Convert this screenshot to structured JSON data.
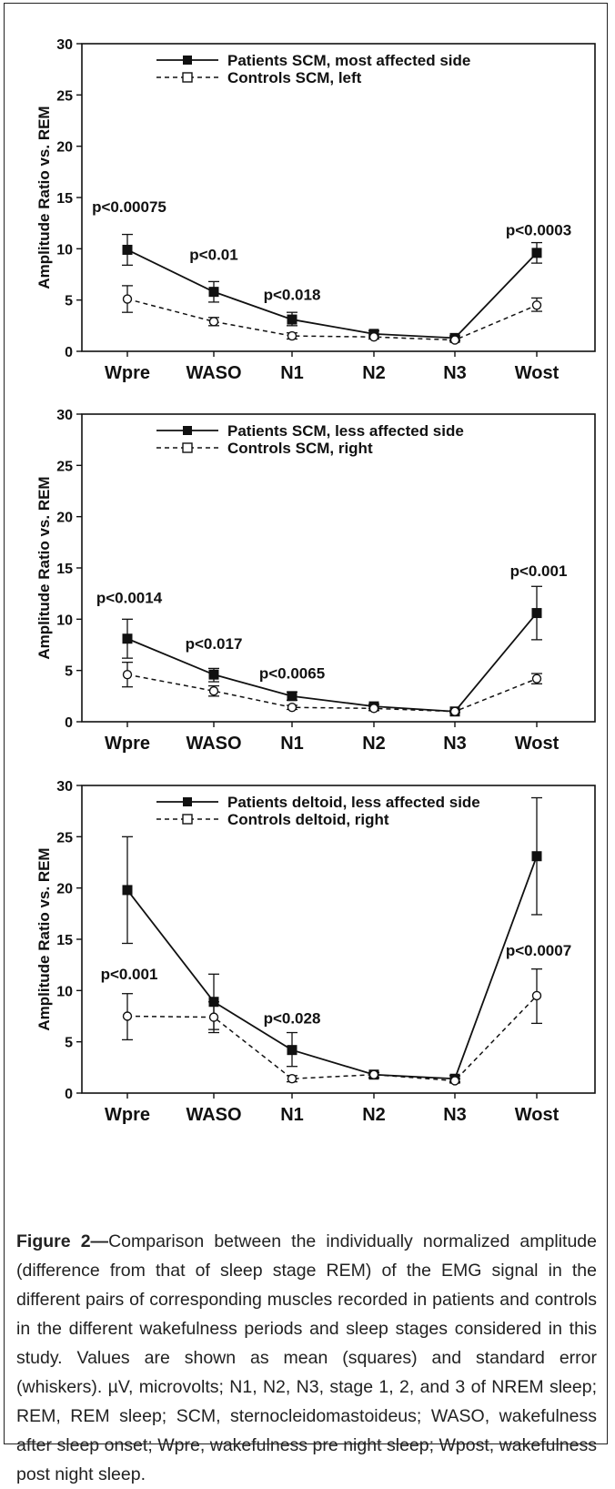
{
  "chart_data": [
    {
      "type": "line",
      "ylabel": "Amplitude Ratio vs. REM",
      "categories": [
        "Wpre",
        "WASO",
        "N1",
        "N2",
        "N3",
        "Wost"
      ],
      "ylim": [
        0,
        30
      ],
      "yticks": [
        0,
        5,
        10,
        15,
        20,
        25,
        30
      ],
      "legend_position": "top-center",
      "series": [
        {
          "name": "Patients SCM, most affected side",
          "style": "solid",
          "marker": "filled-square",
          "color": "#111111",
          "values": [
            9.9,
            5.8,
            3.1,
            1.7,
            1.3,
            9.6
          ],
          "err_low": [
            8.4,
            4.8,
            2.5,
            1.4,
            1.1,
            8.6
          ],
          "err_high": [
            11.4,
            6.8,
            3.8,
            2.0,
            1.5,
            10.6
          ]
        },
        {
          "name": "Controls SCM, left",
          "style": "dashed",
          "marker": "open-circle",
          "color": "#111111",
          "values": [
            5.1,
            2.9,
            1.5,
            1.4,
            1.1,
            4.5
          ],
          "err_low": [
            3.8,
            2.5,
            1.2,
            1.2,
            1.0,
            3.9
          ],
          "err_high": [
            6.4,
            3.3,
            1.8,
            1.6,
            1.3,
            5.2
          ]
        }
      ],
      "annotations": [
        {
          "text": "p<0.00075",
          "category": "Wpre",
          "y": 13.6
        },
        {
          "text": "p<0.01",
          "category": "WASO",
          "y": 8.9
        },
        {
          "text": "p<0.018",
          "category": "N1",
          "y": 5.0
        },
        {
          "text": "p<0.0003",
          "category": "Wost",
          "y": 11.3
        }
      ]
    },
    {
      "type": "line",
      "ylabel": "Amplitude Ratio vs. REM",
      "categories": [
        "Wpre",
        "WASO",
        "N1",
        "N2",
        "N3",
        "Wost"
      ],
      "ylim": [
        0,
        30
      ],
      "yticks": [
        0,
        5,
        10,
        15,
        20,
        25,
        30
      ],
      "legend_position": "top-center",
      "series": [
        {
          "name": "Patients SCM, less affected side",
          "style": "solid",
          "marker": "filled-square",
          "color": "#111111",
          "values": [
            8.1,
            4.6,
            2.5,
            1.5,
            1.0,
            10.6
          ],
          "err_low": [
            6.2,
            3.9,
            2.1,
            1.3,
            0.9,
            8.0
          ],
          "err_high": [
            10.0,
            5.2,
            2.9,
            1.7,
            1.1,
            13.2
          ]
        },
        {
          "name": "Controls SCM, right",
          "style": "dashed",
          "marker": "open-circle",
          "color": "#111111",
          "values": [
            4.6,
            3.0,
            1.4,
            1.3,
            1.0,
            4.2
          ],
          "err_low": [
            3.4,
            2.5,
            1.2,
            1.1,
            0.9,
            3.7
          ],
          "err_high": [
            5.8,
            3.5,
            1.6,
            1.5,
            1.1,
            4.7
          ]
        }
      ],
      "annotations": [
        {
          "text": "p<0.0014",
          "category": "Wpre",
          "y": 11.6
        },
        {
          "text": "p<0.017",
          "category": "WASO",
          "y": 7.1
        },
        {
          "text": "p<0.0065",
          "category": "N1",
          "y": 4.2
        },
        {
          "text": "p<0.001",
          "category": "Wost",
          "y": 14.2
        }
      ]
    },
    {
      "type": "line",
      "ylabel": "Amplitude Ratio vs. REM",
      "categories": [
        "Wpre",
        "WASO",
        "N1",
        "N2",
        "N3",
        "Wost"
      ],
      "ylim": [
        0,
        30
      ],
      "yticks": [
        0,
        5,
        10,
        15,
        20,
        25,
        30
      ],
      "legend_position": "top-center",
      "series": [
        {
          "name": "Patients deltoid, less affected side",
          "style": "solid",
          "marker": "filled-square",
          "color": "#111111",
          "values": [
            19.8,
            8.9,
            4.2,
            1.8,
            1.4,
            23.1
          ],
          "err_low": [
            14.6,
            6.2,
            2.6,
            1.5,
            1.1,
            17.4
          ],
          "err_high": [
            25.0,
            11.6,
            5.9,
            2.0,
            1.7,
            28.8
          ]
        },
        {
          "name": "Controls deltoid, right",
          "style": "dashed",
          "marker": "open-circle",
          "color": "#111111",
          "values": [
            7.5,
            7.4,
            1.4,
            1.8,
            1.2,
            9.5
          ],
          "err_low": [
            5.2,
            5.9,
            1.1,
            1.5,
            1.0,
            6.8
          ],
          "err_high": [
            9.7,
            8.9,
            1.7,
            2.0,
            1.4,
            12.1
          ]
        }
      ],
      "annotations": [
        {
          "text": "p<0.001",
          "category": "Wpre",
          "y": 11.1
        },
        {
          "text": "p<0.028",
          "category": "N1",
          "y": 6.8
        },
        {
          "text": "p<0.0007",
          "category": "Wost",
          "y": 13.4
        }
      ]
    }
  ],
  "caption": {
    "label": "Figure 2—",
    "text": "Comparison between the individually normalized amplitude (difference from that of sleep stage REM) of the EMG signal in the different pairs of corresponding muscles recorded in patients and controls in the different wakefulness periods and sleep stages considered in this study. Values are shown as mean (squares) and standard error (whiskers). µV, microvolts; N1, N2, N3, stage 1, 2, and 3 of NREM sleep; REM, REM sleep; SCM, sternocleidomastoideus; WASO, wakefulness after sleep onset; Wpre, wakefulness pre night sleep; Wpost, wakefulness post night sleep."
  }
}
